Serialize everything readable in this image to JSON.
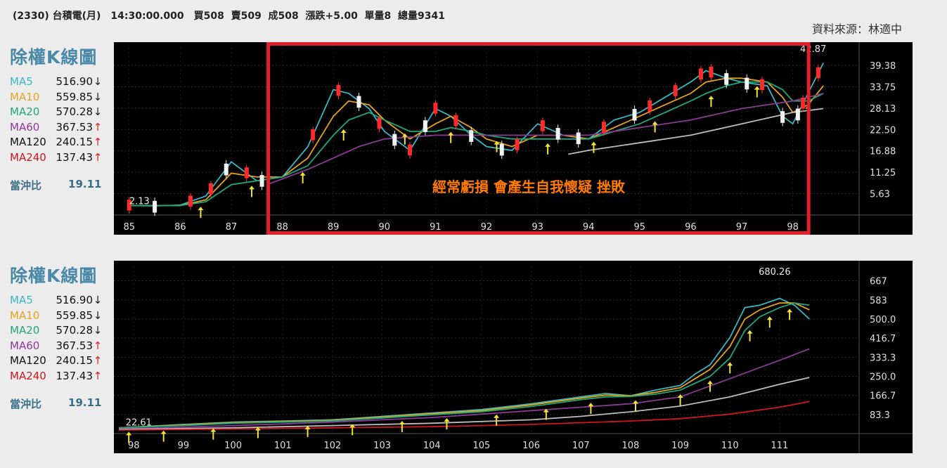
{
  "header": {
    "text": "(2330) 台積電(月)　14:30:00.000　買508  賣509  成508  漲跌+5.00  單量8  總量9341"
  },
  "source": "資料來源：林適中",
  "colors": {
    "MA5": "#37b6c4",
    "MA10": "#e6a21a",
    "MA20": "#1ea87a",
    "MA60": "#8b3a96",
    "MA120": "#111111",
    "MA240": "#d0161e",
    "up_arrow": "#e02020",
    "down_arrow": "#222222",
    "highlight": "#e0202a",
    "overlay": "#ff7a00"
  },
  "panels": [
    {
      "title": "除權K線圖",
      "ma": [
        {
          "name": "MA5",
          "value": "516.90",
          "arrow": "↓",
          "color": "#37b6c4"
        },
        {
          "name": "MA10",
          "value": "559.85",
          "arrow": "↓",
          "color": "#e6a21a"
        },
        {
          "name": "MA20",
          "value": "570.28",
          "arrow": "↓",
          "color": "#1ea87a"
        },
        {
          "name": "MA60",
          "value": "367.53",
          "arrow": "↑",
          "color": "#8b3a96"
        },
        {
          "name": "MA120",
          "value": "240.15",
          "arrow": "↑",
          "color": "#111111"
        },
        {
          "name": "MA240",
          "value": "137.43",
          "arrow": "↑",
          "color": "#d0161e"
        }
      ],
      "ratio_label": "當沖比",
      "ratio_value": "19.11"
    },
    {
      "title": "除權K線圖",
      "ma": [
        {
          "name": "MA5",
          "value": "516.90",
          "arrow": "↓",
          "color": "#37b6c4"
        },
        {
          "name": "MA10",
          "value": "559.85",
          "arrow": "↓",
          "color": "#e6a21a"
        },
        {
          "name": "MA20",
          "value": "570.28",
          "arrow": "↓",
          "color": "#1ea87a"
        },
        {
          "name": "MA60",
          "value": "367.53",
          "arrow": "↑",
          "color": "#8b3a96"
        },
        {
          "name": "MA120",
          "value": "240.15",
          "arrow": "↑",
          "color": "#111111"
        },
        {
          "name": "MA240",
          "value": "137.43",
          "arrow": "↑",
          "color": "#d0161e"
        }
      ],
      "ratio_label": "當沖比",
      "ratio_value": "19.11"
    }
  ],
  "chart_data": [
    {
      "type": "candlestick",
      "y_ticks": [
        "39.38",
        "33.75",
        "28.13",
        "22.50",
        "16.88",
        "11.25",
        "5.63"
      ],
      "y_tick_values": [
        39.38,
        33.75,
        28.13,
        22.5,
        16.88,
        11.25,
        5.63
      ],
      "ylim": [
        0,
        44
      ],
      "x_ticks": [
        "85",
        "86",
        "87",
        "88",
        "89",
        "90",
        "91",
        "92",
        "93",
        "94",
        "95",
        "96",
        "97",
        "98"
      ],
      "xlim": [
        84.7,
        99.3
      ],
      "annotations": [
        {
          "text": "42.87",
          "x": 98.4,
          "y": 42.87
        },
        {
          "text": "2.13",
          "x": 85.2,
          "y": 2.13
        }
      ],
      "overlay_text": "經常虧損 會產生自我懷疑 挫敗",
      "highlight_range": [
        88,
        98.2
      ],
      "series": [
        {
          "name": "MA5",
          "x": [
            85,
            85.5,
            86,
            86.5,
            87,
            87.5,
            88,
            88.5,
            89,
            89.3,
            89.7,
            90,
            90.5,
            91,
            91.3,
            91.7,
            92,
            92.5,
            93,
            93.5,
            94,
            94.5,
            95,
            95.5,
            96,
            96.3,
            96.7,
            97,
            97.5,
            97.8,
            98,
            98.3,
            98.6
          ],
          "values": [
            2.5,
            2.4,
            2.6,
            5,
            14,
            9,
            10,
            18,
            33,
            32,
            28,
            22,
            17,
            28,
            26,
            21,
            18,
            17,
            24,
            21,
            20,
            25,
            27,
            31,
            35,
            38,
            36,
            35,
            34,
            26,
            24,
            32,
            40
          ]
        },
        {
          "name": "MA10",
          "x": [
            85,
            85.5,
            86,
            86.5,
            87,
            87.5,
            88,
            88.5,
            89,
            89.3,
            89.7,
            90,
            90.5,
            91,
            91.3,
            91.7,
            92,
            92.5,
            93,
            93.5,
            94,
            94.5,
            95,
            95.5,
            96,
            96.3,
            96.7,
            97,
            97.5,
            97.8,
            98,
            98.3,
            98.6
          ],
          "values": [
            2.5,
            2.5,
            2.5,
            4,
            11,
            10,
            10,
            15,
            26,
            30,
            29,
            25,
            20,
            24,
            26,
            23,
            20,
            18,
            21,
            21,
            20,
            23,
            26,
            29,
            32,
            35,
            36,
            36,
            35,
            31,
            27,
            29,
            34
          ]
        },
        {
          "name": "MA20",
          "x": [
            85,
            85.5,
            86,
            86.5,
            87,
            87.5,
            88,
            88.5,
            89,
            89.3,
            89.7,
            90,
            90.5,
            91,
            91.3,
            91.7,
            92,
            92.5,
            93,
            93.5,
            94,
            94.5,
            95,
            95.5,
            96,
            96.3,
            96.7,
            97,
            97.5,
            97.8,
            98,
            98.3,
            98.6
          ],
          "values": [
            2.5,
            2.5,
            2.5,
            3.5,
            8,
            9,
            10,
            13,
            21,
            25,
            27,
            25,
            22,
            22,
            23,
            22,
            21,
            20,
            20,
            20,
            20,
            22,
            24,
            27,
            30,
            32,
            34,
            35,
            35,
            33,
            30,
            30,
            32
          ]
        },
        {
          "name": "MA60",
          "x": [
            87.7,
            88.5,
            89,
            89.5,
            90,
            91,
            92,
            93,
            94,
            95,
            96,
            97,
            97.5,
            98,
            98.6
          ],
          "values": [
            8,
            12,
            15,
            18,
            20,
            21,
            21,
            21,
            21,
            23,
            25,
            28,
            29,
            30,
            32
          ]
        },
        {
          "name": "MA120",
          "x": [
            93.6,
            94,
            95,
            96,
            97,
            97.5,
            98,
            98.6
          ],
          "values": [
            16,
            17,
            19,
            21,
            24,
            25.5,
            27,
            28
          ]
        }
      ],
      "candles_up_x": [
        85,
        86.2,
        86.6,
        87.3,
        88.6,
        89.1,
        89.9,
        90.5,
        91,
        91.4,
        92.6,
        93.1,
        94.3,
        95.2,
        95.7,
        96.2,
        96.4,
        97.4,
        98.2,
        98.5
      ],
      "candles_down_x": [
        85.5,
        86.9,
        87.6,
        89.5,
        90.2,
        90.8,
        91.7,
        92.3,
        93.4,
        93.8,
        94.9,
        96.7,
        97.1,
        97.8,
        98.1
      ],
      "arrows_x": [
        86.4,
        87.4,
        88.4,
        89.2,
        90.4,
        91.3,
        92.2,
        93.2,
        94.1,
        95.3,
        96.4,
        97.3,
        98.3
      ]
    },
    {
      "type": "candlestick",
      "y_ticks": [
        "667",
        "583",
        "500.0",
        "416.7",
        "333.3",
        "250.0",
        "166.7",
        "83.3"
      ],
      "y_tick_values": [
        667,
        583,
        500,
        416.7,
        333.3,
        250,
        166.7,
        83.3
      ],
      "ylim": [
        0,
        730
      ],
      "x_ticks": [
        "98",
        "99",
        "100",
        "101",
        "102",
        "103",
        "104",
        "105",
        "106",
        "107",
        "108",
        "109",
        "110",
        "111"
      ],
      "xlim": [
        97.6,
        112.6
      ],
      "annotations": [
        {
          "text": "680.26",
          "x": 110.9,
          "y": 680.26
        },
        {
          "text": "22.61",
          "x": 98.1,
          "y": 22.61
        }
      ],
      "series": [
        {
          "name": "MA5",
          "x": [
            97.7,
            99,
            100,
            101,
            102,
            103,
            104,
            105,
            106,
            107,
            107.5,
            108,
            108.5,
            109,
            109.3,
            109.6,
            110,
            110.3,
            110.6,
            111,
            111.3,
            111.6
          ],
          "values": [
            25,
            40,
            50,
            55,
            60,
            75,
            90,
            105,
            130,
            160,
            175,
            165,
            190,
            210,
            260,
            300,
            420,
            550,
            560,
            590,
            560,
            500
          ]
        },
        {
          "name": "MA10",
          "x": [
            97.7,
            99,
            100,
            101,
            102,
            103,
            104,
            105,
            106,
            107,
            107.5,
            108,
            108.5,
            109,
            109.3,
            109.6,
            110,
            110.3,
            110.6,
            111,
            111.3,
            111.6
          ],
          "values": [
            25,
            38,
            48,
            53,
            58,
            72,
            87,
            100,
            125,
            155,
            168,
            165,
            180,
            200,
            240,
            280,
            380,
            500,
            540,
            570,
            570,
            540
          ]
        },
        {
          "name": "MA20",
          "x": [
            97.7,
            99,
            100,
            101,
            102,
            103,
            104,
            105,
            106,
            107,
            107.5,
            108,
            108.5,
            109,
            109.3,
            109.6,
            110,
            110.3,
            110.6,
            111,
            111.3,
            111.6
          ],
          "values": [
            25,
            35,
            45,
            50,
            55,
            68,
            82,
            95,
            118,
            148,
            160,
            162,
            172,
            190,
            220,
            250,
            330,
            450,
            510,
            550,
            570,
            560
          ]
        },
        {
          "name": "MA60",
          "x": [
            97.7,
            99,
            100,
            101,
            102,
            103,
            104,
            105,
            106,
            107,
            108,
            109,
            109.5,
            110,
            110.5,
            111,
            111.6
          ],
          "values": [
            20,
            28,
            35,
            42,
            50,
            60,
            70,
            85,
            100,
            115,
            130,
            160,
            200,
            240,
            280,
            320,
            370
          ]
        },
        {
          "name": "MA120",
          "x": [
            97.7,
            100,
            102,
            104,
            106,
            107,
            108,
            109,
            110,
            111,
            111.6
          ],
          "values": [
            18,
            25,
            35,
            45,
            60,
            75,
            95,
            120,
            160,
            215,
            245
          ]
        },
        {
          "name": "MA240",
          "x": [
            97.7,
            100,
            102,
            104,
            106,
            108,
            109,
            110,
            111,
            111.6
          ],
          "values": [
            15,
            20,
            25,
            30,
            40,
            55,
            65,
            85,
            115,
            140
          ]
        }
      ],
      "arrows_x": [
        97.9,
        98.6,
        99.6,
        100.5,
        101.5,
        102.4,
        103.4,
        104.3,
        105.3,
        106.3,
        107.2,
        108.1,
        109.0,
        109.6,
        110.0,
        110.4,
        110.8,
        111.2
      ]
    }
  ]
}
